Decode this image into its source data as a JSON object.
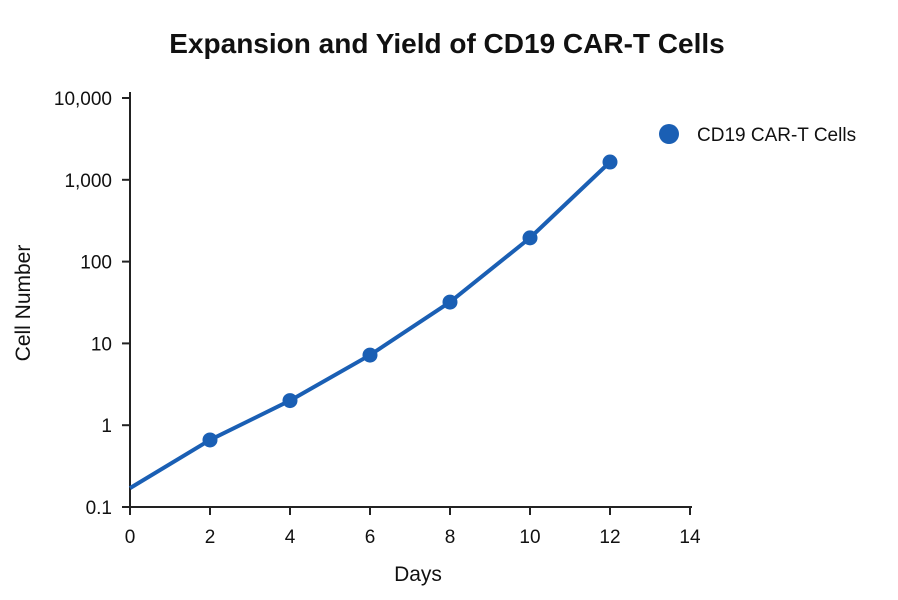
{
  "chart_data": {
    "type": "line",
    "title": "Expansion and Yield of CD19 CAR-T Cells",
    "xlabel": "Days",
    "ylabel": "Cell Number",
    "xlim": [
      0,
      14
    ],
    "ylim": [
      0.1,
      10000
    ],
    "yscale": "log",
    "x_ticks": [
      0,
      2,
      4,
      6,
      8,
      10,
      12,
      14
    ],
    "x_tick_labels": [
      "0",
      "2",
      "4",
      "6",
      "8",
      "10",
      "12",
      "14"
    ],
    "y_ticks": [
      0.1,
      1,
      10,
      100,
      1000,
      10000
    ],
    "y_tick_labels": [
      "0.1",
      "1",
      "10",
      "100",
      "1,000",
      "10,000"
    ],
    "grid": false,
    "legend_position": "top-right",
    "series": [
      {
        "name": "CD19 CAR-T Cells",
        "color": "#1a5fb4",
        "x": [
          2,
          4,
          6,
          8,
          10,
          12
        ],
        "y": [
          0.66,
          2.0,
          7.2,
          32,
          195,
          1650
        ],
        "line_start": {
          "x": 0,
          "y": 0.17
        }
      }
    ]
  }
}
